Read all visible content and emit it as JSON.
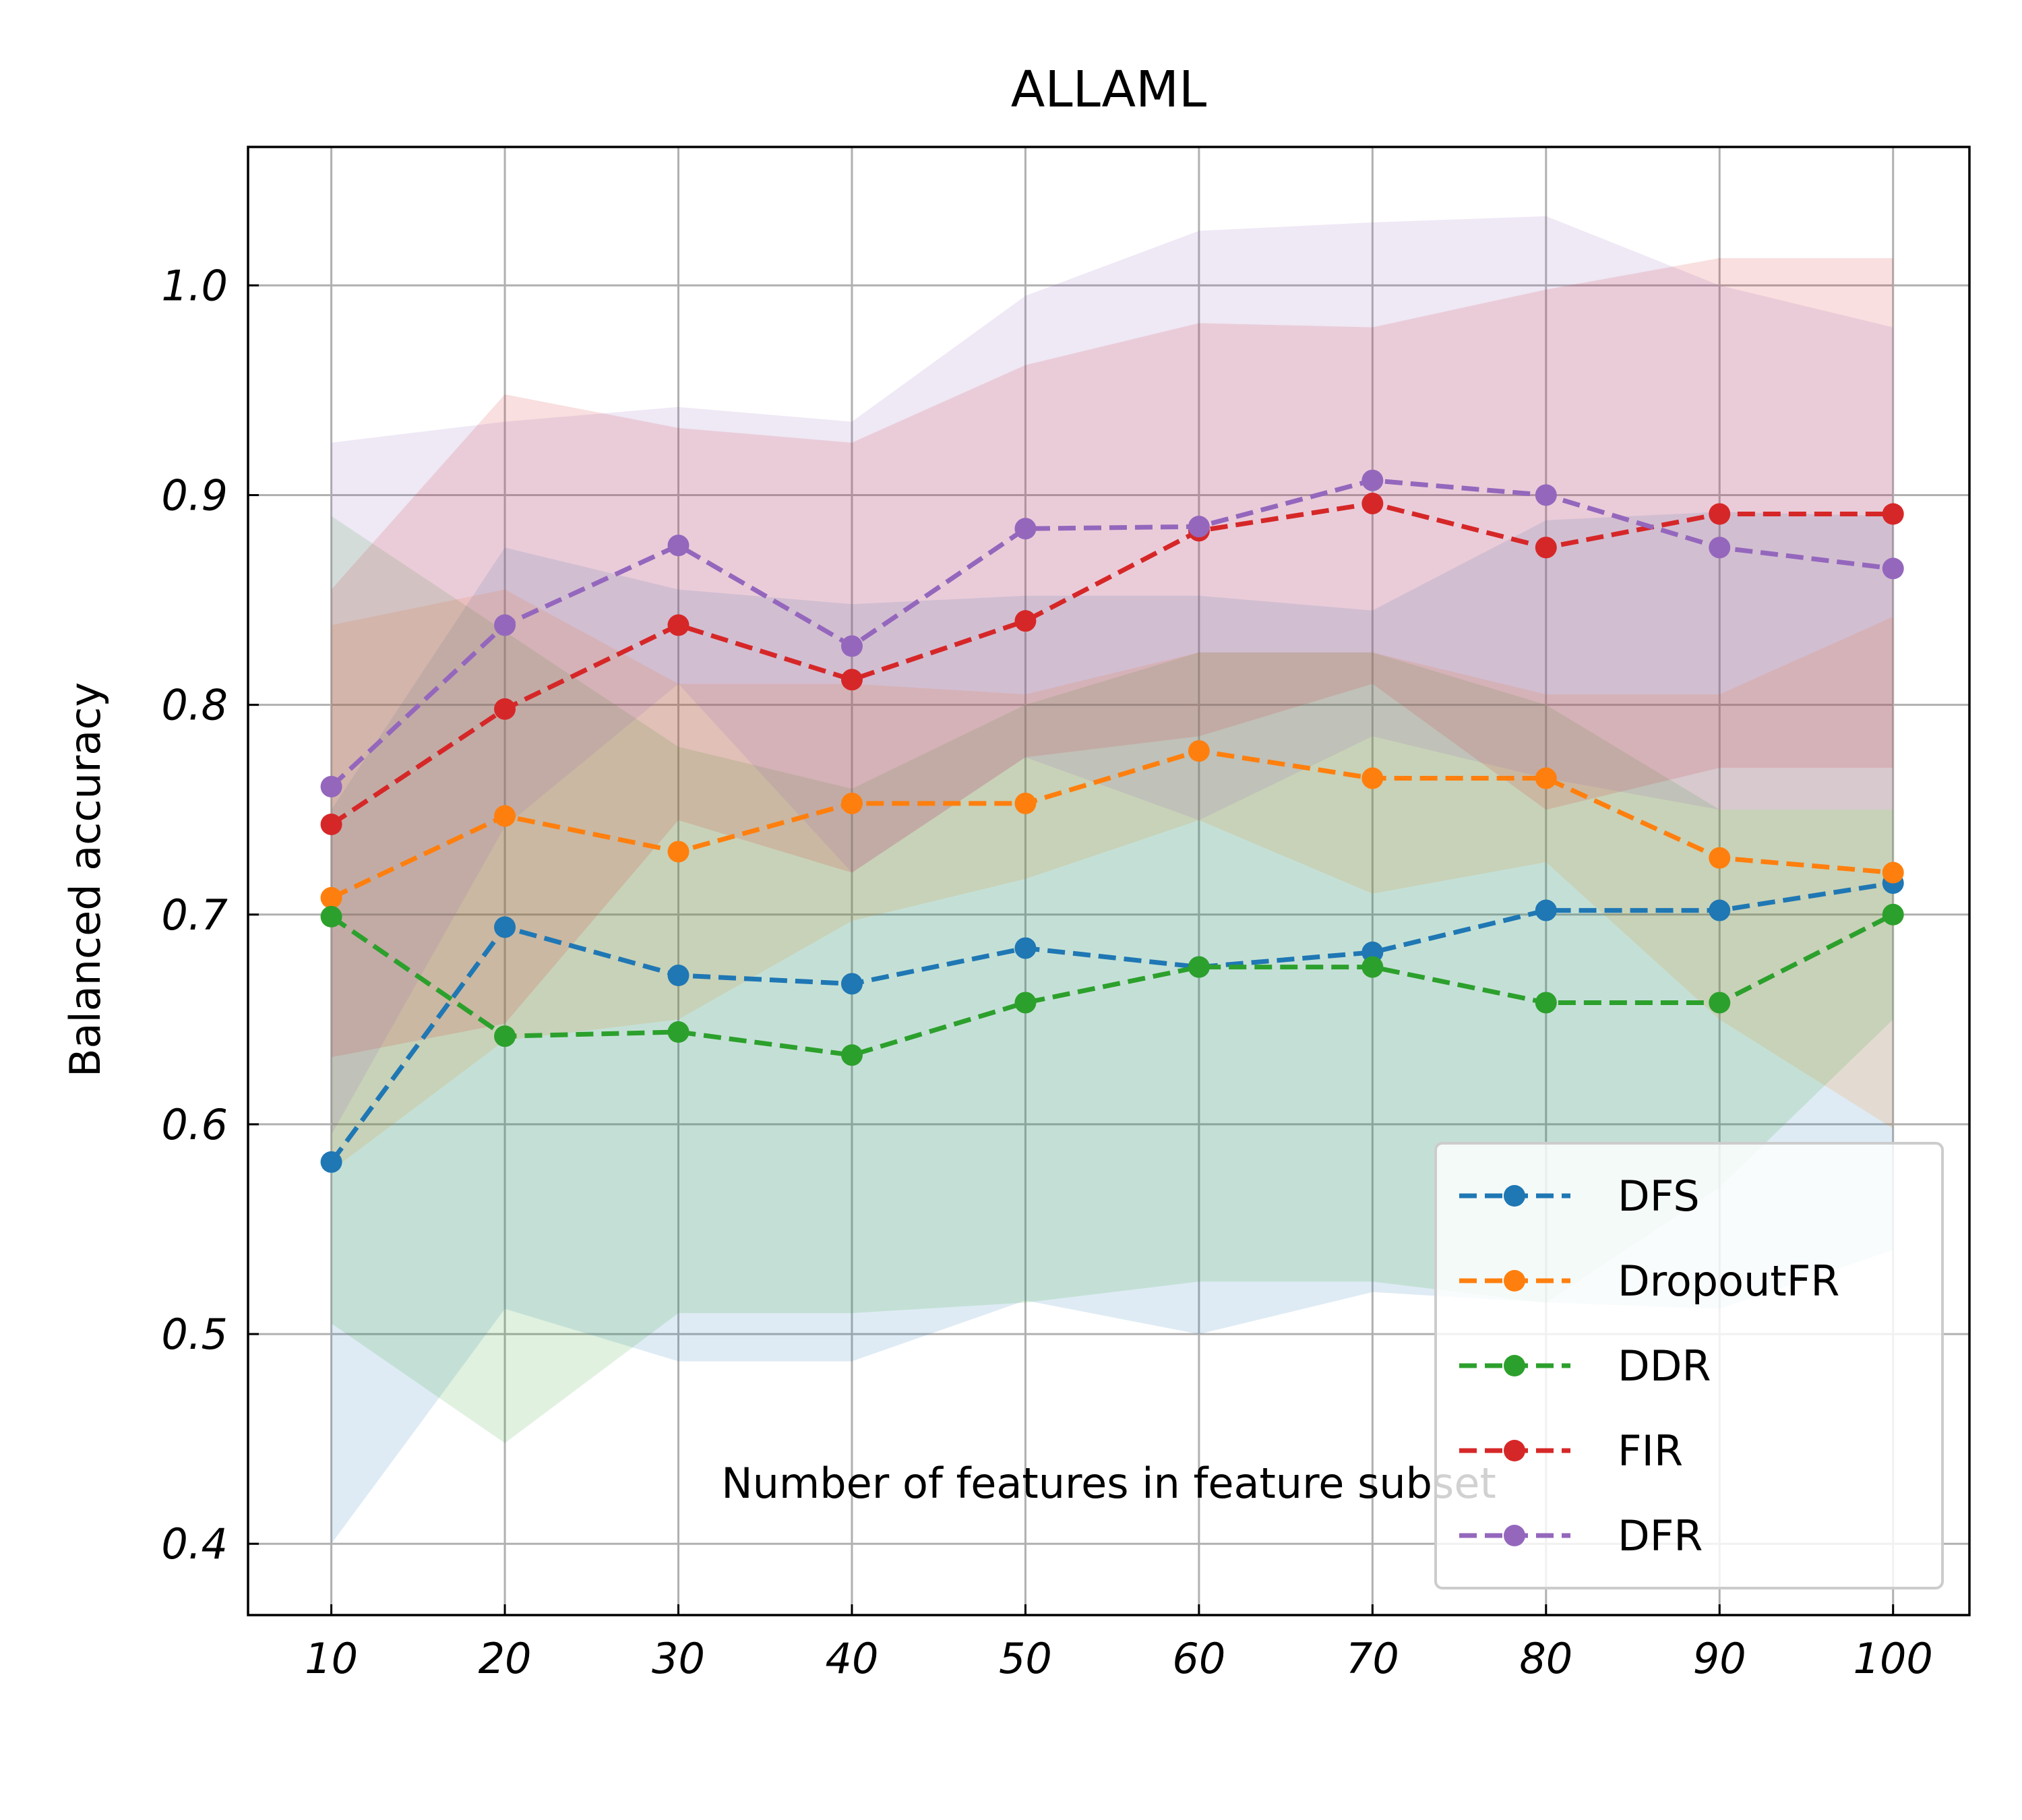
{
  "chart_data": {
    "type": "line",
    "title": "ALLAML",
    "xlabel": "Number of features in feature subset",
    "ylabel": "Balanced accuracy",
    "x": [
      10,
      20,
      30,
      40,
      50,
      60,
      70,
      80,
      90,
      100
    ],
    "xlim": [
      5.2,
      104.4
    ],
    "ylim": [
      0.366,
      1.066
    ],
    "yticks": [
      0.4,
      0.5,
      0.6,
      0.7,
      0.8,
      0.9,
      1.0
    ],
    "ytick_labels": [
      "0.4",
      "0.5",
      "0.6",
      "0.7",
      "0.8",
      "0.9",
      "1.0"
    ],
    "xtick_labels": [
      "10",
      "20",
      "30",
      "40",
      "50",
      "60",
      "70",
      "80",
      "90",
      "100"
    ],
    "grid": true,
    "legend_position": "lower-right",
    "series": [
      {
        "name": "DFS",
        "color": "#1f77b4",
        "values": [
          0.582,
          0.694,
          0.671,
          0.667,
          0.684,
          0.675,
          0.682,
          0.702,
          0.702,
          0.715
        ],
        "upper": [
          0.75,
          0.875,
          0.855,
          0.848,
          0.852,
          0.852,
          0.845,
          0.888,
          0.892,
          0.89
        ],
        "lower": [
          0.4,
          0.512,
          0.487,
          0.487,
          0.516,
          0.5,
          0.52,
          0.515,
          0.512,
          0.54
        ]
      },
      {
        "name": "DropoutFR",
        "color": "#ff7f0e",
        "values": [
          0.708,
          0.747,
          0.73,
          0.753,
          0.753,
          0.778,
          0.765,
          0.765,
          0.727,
          0.72
        ],
        "upper": [
          0.838,
          0.855,
          0.81,
          0.81,
          0.805,
          0.825,
          0.825,
          0.805,
          0.805,
          0.842
        ],
        "lower": [
          0.578,
          0.64,
          0.65,
          0.697,
          0.717,
          0.745,
          0.71,
          0.725,
          0.65,
          0.598
        ]
      },
      {
        "name": "DDR",
        "color": "#2ca02c",
        "values": [
          0.699,
          0.642,
          0.644,
          0.633,
          0.658,
          0.675,
          0.675,
          0.658,
          0.658,
          0.7
        ],
        "upper": [
          0.89,
          0.835,
          0.78,
          0.76,
          0.8,
          0.825,
          0.825,
          0.8,
          0.75,
          0.75
        ],
        "lower": [
          0.505,
          0.448,
          0.51,
          0.51,
          0.515,
          0.525,
          0.525,
          0.515,
          0.57,
          0.65
        ]
      },
      {
        "name": "FIR",
        "color": "#d62728",
        "values": [
          0.743,
          0.798,
          0.838,
          0.812,
          0.84,
          0.883,
          0.896,
          0.875,
          0.891,
          0.891
        ],
        "upper": [
          0.855,
          0.948,
          0.932,
          0.925,
          0.962,
          0.982,
          0.98,
          0.998,
          1.013,
          1.013
        ],
        "lower": [
          0.632,
          0.648,
          0.745,
          0.72,
          0.775,
          0.785,
          0.81,
          0.75,
          0.77,
          0.77
        ]
      },
      {
        "name": "DFR",
        "color": "#9467bd",
        "values": [
          0.761,
          0.838,
          0.876,
          0.828,
          0.884,
          0.885,
          0.907,
          0.9,
          0.875,
          0.865
        ],
        "upper": [
          0.925,
          0.935,
          0.942,
          0.935,
          0.995,
          1.026,
          1.03,
          1.033,
          1.0,
          0.98
        ],
        "lower": [
          0.595,
          0.742,
          0.81,
          0.72,
          0.775,
          0.745,
          0.785,
          0.765,
          0.75,
          0.75
        ]
      }
    ]
  }
}
